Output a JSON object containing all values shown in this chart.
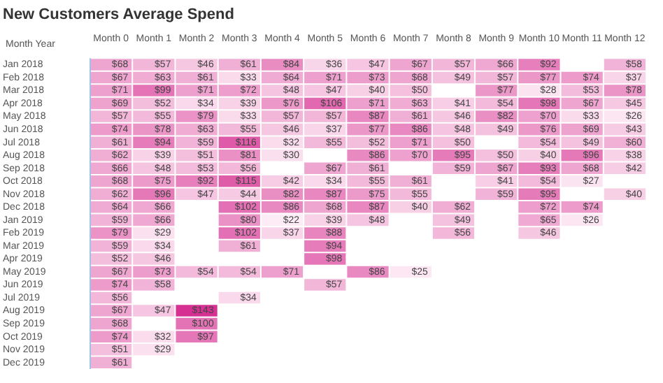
{
  "chart_data": {
    "type": "heatmap",
    "title": "New Customers Average Spend",
    "ylabel": "Month Year",
    "categories": [
      "Month 0",
      "Month 1",
      "Month 2",
      "Month 3",
      "Month 4",
      "Month 5",
      "Month 6",
      "Month 7",
      "Month 8",
      "Month 9",
      "Month 10",
      "Month 11",
      "Month 12"
    ],
    "y_categories": [
      "Jan 2018",
      "Feb 2018",
      "Mar 2018",
      "Apr 2018",
      "May 2018",
      "Jun 2018",
      "Jul 2018",
      "Aug 2018",
      "Sep 2018",
      "Oct 2018",
      "Nov 2018",
      "Dec 2018",
      "Jan 2019",
      "Feb 2019",
      "Mar 2019",
      "Apr 2019",
      "May 2019",
      "Jun 2019",
      "Jul 2019",
      "Aug 2019",
      "Sep 2019",
      "Oct 2019",
      "Nov 2019",
      "Dec 2019"
    ],
    "cells": [
      [
        68,
        57,
        46,
        61,
        84,
        36,
        47,
        67,
        57,
        66,
        92,
        null,
        58
      ],
      [
        67,
        63,
        61,
        33,
        64,
        71,
        73,
        68,
        49,
        57,
        77,
        74,
        37
      ],
      [
        71,
        99,
        71,
        72,
        48,
        47,
        40,
        50,
        null,
        77,
        28,
        53,
        78
      ],
      [
        69,
        52,
        34,
        39,
        76,
        106,
        71,
        63,
        41,
        54,
        98,
        67,
        45
      ],
      [
        57,
        55,
        79,
        33,
        57,
        57,
        87,
        61,
        46,
        82,
        70,
        33,
        26
      ],
      [
        74,
        78,
        63,
        55,
        46,
        37,
        77,
        86,
        48,
        49,
        76,
        69,
        43
      ],
      [
        61,
        94,
        59,
        116,
        32,
        55,
        52,
        71,
        50,
        null,
        54,
        49,
        60
      ],
      [
        62,
        39,
        51,
        81,
        30,
        null,
        86,
        70,
        95,
        50,
        40,
        96,
        38
      ],
      [
        66,
        48,
        53,
        56,
        null,
        67,
        61,
        null,
        59,
        67,
        93,
        68,
        42
      ],
      [
        68,
        75,
        92,
        115,
        42,
        34,
        55,
        61,
        null,
        41,
        54,
        27,
        null
      ],
      [
        62,
        96,
        47,
        44,
        82,
        87,
        75,
        55,
        null,
        59,
        95,
        null,
        40
      ],
      [
        64,
        66,
        null,
        102,
        86,
        68,
        87,
        40,
        62,
        null,
        72,
        74,
        null
      ],
      [
        59,
        66,
        null,
        80,
        22,
        39,
        48,
        null,
        49,
        null,
        65,
        26,
        null
      ],
      [
        79,
        29,
        null,
        102,
        37,
        88,
        null,
        null,
        56,
        null,
        46,
        null,
        null
      ],
      [
        59,
        34,
        null,
        61,
        null,
        94,
        null,
        null,
        null,
        null,
        null,
        null,
        null
      ],
      [
        52,
        46,
        null,
        null,
        null,
        98,
        null,
        null,
        null,
        null,
        null,
        null,
        null
      ],
      [
        67,
        73,
        54,
        54,
        71,
        null,
        86,
        25,
        null,
        null,
        null,
        null,
        null
      ],
      [
        74,
        58,
        null,
        null,
        null,
        57,
        null,
        null,
        null,
        null,
        null,
        null,
        null
      ],
      [
        56,
        null,
        null,
        34,
        null,
        null,
        null,
        null,
        null,
        null,
        null,
        null,
        null
      ],
      [
        67,
        47,
        143,
        null,
        null,
        null,
        null,
        null,
        null,
        null,
        null,
        null,
        null
      ],
      [
        68,
        null,
        100,
        null,
        null,
        null,
        null,
        null,
        null,
        null,
        null,
        null,
        null
      ],
      [
        74,
        32,
        97,
        null,
        null,
        null,
        null,
        null,
        null,
        null,
        null,
        null,
        null
      ],
      [
        51,
        29,
        null,
        null,
        null,
        null,
        null,
        null,
        null,
        null,
        null,
        null,
        null
      ],
      [
        61,
        null,
        null,
        null,
        null,
        null,
        null,
        null,
        null,
        null,
        null,
        null,
        null
      ]
    ],
    "cell_labels": [
      [
        "$68",
        "$57",
        "$46",
        "$61",
        "$84",
        "$36",
        "$47",
        "$67",
        "$57",
        "$66",
        "$92",
        null,
        "$58"
      ],
      [
        "$67",
        "$63",
        "$61",
        "$33",
        "$64",
        "$71",
        "$73",
        "$68",
        "$49",
        "$57",
        "$77",
        "$74",
        "$37"
      ],
      [
        "$71",
        "$99",
        "$71",
        "$72",
        "$48",
        "$47",
        "$40",
        "$50",
        null,
        "$77",
        "$28",
        "$53",
        "$78"
      ],
      [
        "$69",
        "$52",
        "$34",
        "$39",
        "$76",
        "$106",
        "$71",
        "$63",
        "$41",
        "$54",
        "$98",
        "$67",
        "$45"
      ],
      [
        "$57",
        "$55",
        "$79",
        "$33",
        "$57",
        "$57",
        "$87",
        "$61",
        "$46",
        "$82",
        "$70",
        "$33",
        "$26"
      ],
      [
        "$74",
        "$78",
        "$63",
        "$55",
        "$46",
        "$37",
        "$77",
        "$86",
        "$48",
        "$49",
        "$76",
        "$69",
        "$43"
      ],
      [
        "$61",
        "$94",
        "$59",
        "$116",
        "$32",
        "$55",
        "$52",
        "$71",
        "$50",
        null,
        "$54",
        "$49",
        "$60"
      ],
      [
        "$62",
        "$39",
        "$51",
        "$81",
        "$30",
        null,
        "$86",
        "$70",
        "$95",
        "$50",
        "$40",
        "$96",
        "$38"
      ],
      [
        "$66",
        "$48",
        "$53",
        "$56",
        null,
        "$67",
        "$61",
        null,
        "$59",
        "$67",
        "$93",
        "$68",
        "$42"
      ],
      [
        "$68",
        "$75",
        "$92",
        "$115",
        "$42",
        "$34",
        "$55",
        "$61",
        null,
        "$41",
        "$54",
        "$27",
        null
      ],
      [
        "$62",
        "$96",
        "$47",
        "$44",
        "$82",
        "$87",
        "$75",
        "$55",
        null,
        "$59",
        "$95",
        null,
        "$40"
      ],
      [
        "$64",
        "$66",
        null,
        "$102",
        "$86",
        "$68",
        "$87",
        "$40",
        "$62",
        null,
        "$72",
        "$74",
        null
      ],
      [
        "$59",
        "$66",
        null,
        "$80",
        "$22",
        "$39",
        "$48",
        null,
        "$49",
        null,
        "$65",
        "$26",
        null
      ],
      [
        "$79",
        "$29",
        null,
        "$102",
        "$37",
        "$88",
        null,
        null,
        "$56",
        null,
        "$46",
        null,
        null
      ],
      [
        "$59",
        "$34",
        null,
        "$61",
        null,
        "$94",
        null,
        null,
        null,
        null,
        null,
        null,
        null
      ],
      [
        "$52",
        "$46",
        null,
        null,
        null,
        "$98",
        null,
        null,
        null,
        null,
        null,
        null,
        null
      ],
      [
        "$67",
        "$73",
        "$54",
        "$54",
        "$71",
        null,
        "$86",
        "$25",
        null,
        null,
        null,
        null,
        null
      ],
      [
        "$74",
        "$58",
        null,
        null,
        null,
        "$57",
        null,
        null,
        null,
        null,
        null,
        null,
        null
      ],
      [
        "$56",
        null,
        null,
        "$34",
        null,
        null,
        null,
        null,
        null,
        null,
        null,
        null,
        null
      ],
      [
        "$67",
        "$47",
        "$143",
        null,
        null,
        null,
        null,
        null,
        null,
        null,
        null,
        null,
        null
      ],
      [
        "$68",
        null,
        "$100",
        null,
        null,
        null,
        null,
        null,
        null,
        null,
        null,
        null,
        null
      ],
      [
        "$74",
        "$32",
        "$97",
        null,
        null,
        null,
        null,
        null,
        null,
        null,
        null,
        null,
        null
      ],
      [
        "$51",
        "$29",
        null,
        null,
        null,
        null,
        null,
        null,
        null,
        null,
        null,
        null,
        null
      ],
      [
        "$61",
        null,
        null,
        null,
        null,
        null,
        null,
        null,
        null,
        null,
        null,
        null,
        null
      ]
    ]
  }
}
